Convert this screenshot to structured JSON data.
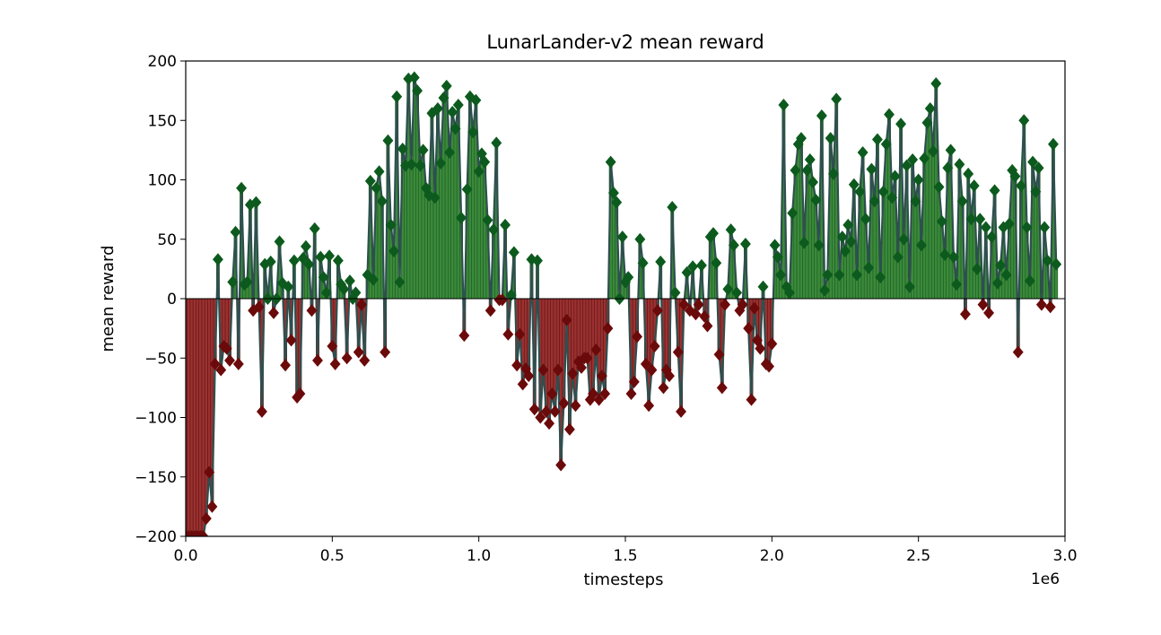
{
  "chart_data": {
    "type": "bar",
    "title": "LunarLander-v2 mean reward",
    "xlabel": "timesteps",
    "ylabel": "mean reward",
    "x_scale_label": "1e6",
    "xlim": [
      0.0,
      3.0
    ],
    "ylim": [
      -200,
      200
    ],
    "x_ticks": [
      "0.0",
      "0.5",
      "1.0",
      "1.5",
      "2.0",
      "2.5",
      "3.0"
    ],
    "y_ticks": [
      "200",
      "150",
      "100",
      "50",
      "0",
      "−50",
      "−100",
      "−150",
      "−200"
    ],
    "grid": false,
    "legend": "none",
    "colors": {
      "positive_fill": "#3a8a3a",
      "positive_marker": "#0d5a1e",
      "negative_fill": "#9b3030",
      "negative_marker": "#6b0a0a",
      "line": "#2f4f4f"
    },
    "x_step": 0.01,
    "x_start": 0.0,
    "values": [
      -200,
      -200,
      -200,
      -200,
      -200,
      -200,
      -200,
      -185,
      -146,
      -175,
      -55,
      33,
      -60,
      -40,
      -42,
      -52,
      14,
      56,
      -55,
      93,
      12,
      14,
      79,
      -10,
      81,
      -7,
      -95,
      29,
      0,
      31,
      -12,
      0,
      48,
      13,
      -56,
      10,
      -35,
      32,
      -83,
      -80,
      34,
      44,
      29,
      -10,
      59,
      -52,
      35,
      18,
      5,
      36,
      -40,
      -55,
      32,
      12,
      8,
      -50,
      15,
      0,
      5,
      -45,
      -5,
      -52,
      20,
      99,
      16,
      93,
      107,
      82,
      -45,
      133,
      62,
      40,
      170,
      14,
      126,
      112,
      185,
      113,
      186,
      175,
      112,
      125,
      93,
      87,
      156,
      85,
      160,
      114,
      169,
      179,
      123,
      157,
      143,
      163,
      68,
      -31,
      92,
      170,
      140,
      167,
      107,
      122,
      115,
      66,
      -10,
      58,
      131,
      -1,
      -1,
      62,
      -30,
      3,
      39,
      -56,
      -30,
      -72,
      -59,
      -65,
      33,
      -93,
      32,
      -100,
      -60,
      -95,
      -105,
      -80,
      -95,
      -60,
      -140,
      -88,
      -18,
      -110,
      -63,
      -90,
      -53,
      -58,
      -50,
      -50,
      -85,
      -80,
      -43,
      -85,
      -65,
      -80,
      -25,
      115,
      89,
      81,
      0,
      52,
      14,
      18,
      -80,
      -70,
      -32,
      50,
      30,
      -55,
      -90,
      -60,
      -40,
      -10,
      31,
      -75,
      -60,
      -65,
      77,
      5,
      -45,
      -95,
      -5,
      22,
      -10,
      27,
      -13,
      -5,
      28,
      -15,
      -23,
      52,
      55,
      30,
      -47,
      -75,
      -5,
      8,
      58,
      45,
      5,
      -10,
      -5,
      46,
      -25,
      -85,
      -8,
      -35,
      -42,
      10,
      -55,
      -57,
      -38,
      45,
      35,
      20,
      163,
      10,
      5,
      72,
      108,
      130,
      135,
      47,
      108,
      117,
      98,
      83,
      45,
      154,
      7,
      20,
      135,
      105,
      168,
      20,
      52,
      40,
      62,
      48,
      96,
      20,
      90,
      123,
      67,
      26,
      109,
      82,
      134,
      18,
      90,
      130,
      155,
      85,
      103,
      35,
      147,
      50,
      112,
      10,
      117,
      82,
      100,
      45,
      118,
      148,
      160,
      124,
      181,
      94,
      65,
      37,
      110,
      125,
      35,
      12,
      113,
      82,
      -13,
      105,
      67,
      95,
      25,
      67,
      -5,
      60,
      -12,
      52,
      91,
      13,
      28,
      60,
      20,
      63,
      108,
      103,
      -45,
      95,
      150,
      60,
      15,
      115,
      90,
      110,
      -5,
      60,
      32,
      -7,
      130,
      29
    ]
  }
}
